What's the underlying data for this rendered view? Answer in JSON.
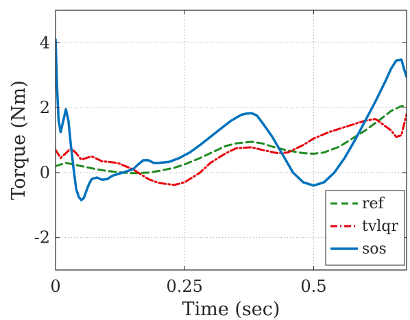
{
  "chart_data": {
    "type": "line",
    "xlabel": "Time (sec)",
    "ylabel": "Torque (Nm)",
    "xlim": [
      0,
      0.68
    ],
    "ylim": [
      -3,
      5
    ],
    "xticks": [
      0,
      0.25,
      0.5
    ],
    "xtick_labels": [
      "0",
      "0.25",
      "0.5"
    ],
    "yticks": [
      -2,
      0,
      2,
      4
    ],
    "ytick_labels": [
      "-2",
      "0",
      "2",
      "4"
    ],
    "grid": true,
    "legend_position": "bottom-right",
    "series": [
      {
        "name": "ref",
        "color": "#228b22",
        "style": "dashed",
        "x": [
          0,
          0.02,
          0.05,
          0.08,
          0.1,
          0.13,
          0.15,
          0.18,
          0.2,
          0.23,
          0.25,
          0.28,
          0.3,
          0.33,
          0.35,
          0.38,
          0.4,
          0.42,
          0.45,
          0.48,
          0.5,
          0.52,
          0.55,
          0.58,
          0.6,
          0.63,
          0.65,
          0.67,
          0.68
        ],
        "y": [
          0.2,
          0.3,
          0.2,
          0.1,
          0.05,
          0.0,
          -0.02,
          0.0,
          0.05,
          0.15,
          0.25,
          0.45,
          0.6,
          0.82,
          0.9,
          0.95,
          0.9,
          0.8,
          0.68,
          0.6,
          0.58,
          0.62,
          0.8,
          1.1,
          1.3,
          1.65,
          1.9,
          2.05,
          2.05
        ]
      },
      {
        "name": "tvlqr",
        "color": "#e8000b",
        "style": "dashdot",
        "x": [
          0,
          0.01,
          0.02,
          0.03,
          0.04,
          0.05,
          0.07,
          0.09,
          0.12,
          0.15,
          0.18,
          0.2,
          0.23,
          0.25,
          0.28,
          0.3,
          0.33,
          0.35,
          0.38,
          0.4,
          0.43,
          0.45,
          0.48,
          0.5,
          0.53,
          0.55,
          0.58,
          0.6,
          0.62,
          0.65,
          0.66,
          0.67,
          0.68
        ],
        "y": [
          0.7,
          0.45,
          0.6,
          0.75,
          0.6,
          0.4,
          0.5,
          0.35,
          0.3,
          0.1,
          -0.2,
          -0.32,
          -0.38,
          -0.3,
          0.0,
          0.3,
          0.6,
          0.75,
          0.78,
          0.7,
          0.6,
          0.62,
          0.85,
          1.05,
          1.25,
          1.35,
          1.5,
          1.6,
          1.65,
          1.3,
          1.1,
          1.15,
          1.8
        ]
      },
      {
        "name": "sos",
        "color": "#0072bd",
        "style": "solid",
        "x": [
          0,
          0.003,
          0.006,
          0.01,
          0.015,
          0.02,
          0.025,
          0.03,
          0.035,
          0.04,
          0.045,
          0.05,
          0.055,
          0.06,
          0.065,
          0.07,
          0.08,
          0.09,
          0.1,
          0.11,
          0.12,
          0.13,
          0.14,
          0.15,
          0.16,
          0.17,
          0.18,
          0.19,
          0.2,
          0.22,
          0.24,
          0.26,
          0.28,
          0.3,
          0.32,
          0.34,
          0.36,
          0.37,
          0.38,
          0.39,
          0.4,
          0.42,
          0.44,
          0.46,
          0.48,
          0.5,
          0.52,
          0.54,
          0.56,
          0.58,
          0.6,
          0.62,
          0.64,
          0.65,
          0.66,
          0.67,
          0.675,
          0.68
        ],
        "y": [
          4.1,
          2.6,
          1.6,
          1.25,
          1.6,
          1.95,
          1.6,
          0.8,
          0.1,
          -0.5,
          -0.75,
          -0.85,
          -0.78,
          -0.55,
          -0.35,
          -0.2,
          -0.15,
          -0.22,
          -0.2,
          -0.1,
          -0.05,
          0.0,
          0.05,
          0.1,
          0.25,
          0.38,
          0.38,
          0.3,
          0.3,
          0.33,
          0.45,
          0.62,
          0.85,
          1.1,
          1.35,
          1.6,
          1.78,
          1.82,
          1.83,
          1.76,
          1.55,
          1.1,
          0.55,
          0.0,
          -0.3,
          -0.4,
          -0.3,
          0.0,
          0.45,
          1.0,
          1.6,
          2.2,
          2.85,
          3.2,
          3.45,
          3.48,
          3.2,
          2.95
        ]
      }
    ]
  }
}
